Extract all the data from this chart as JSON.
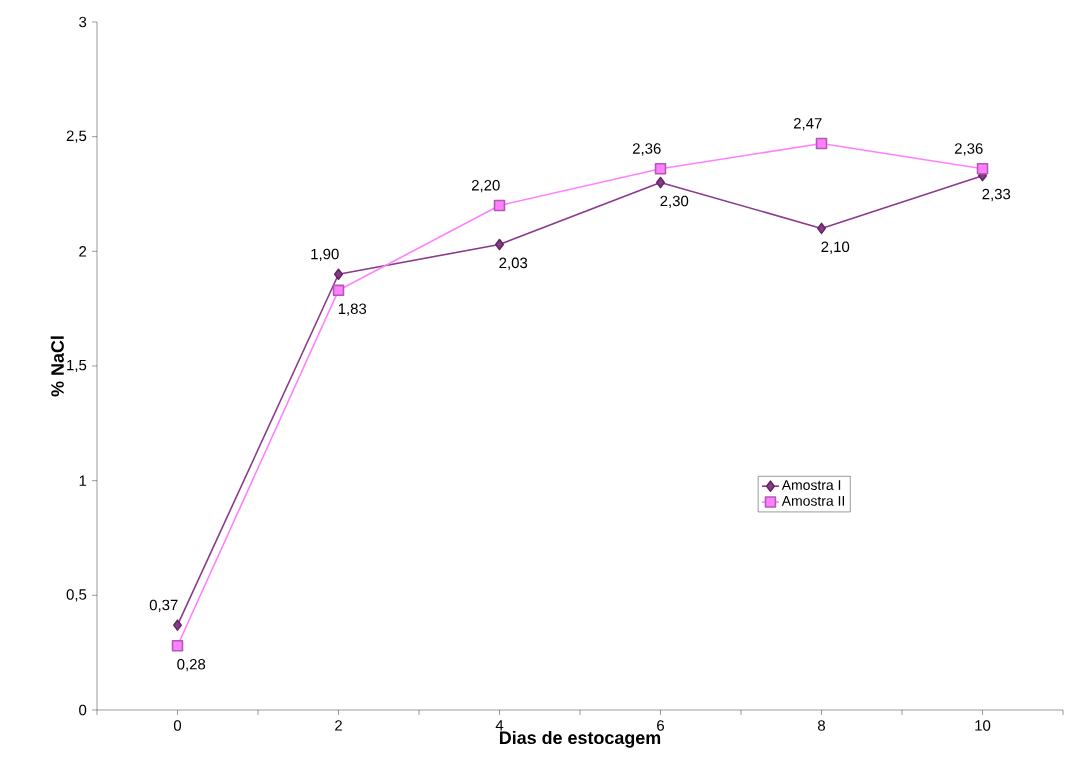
{
  "chart_data": {
    "type": "line",
    "xlabel": "Dias de estocagem",
    "ylabel": "% NaCl",
    "x": [
      0,
      2,
      4,
      6,
      8,
      10
    ],
    "xlim": [
      -1,
      11
    ],
    "xticks": [
      {
        "value": -1,
        "label": null
      },
      0,
      {
        "value": 1,
        "label": null
      },
      2,
      {
        "value": 3,
        "label": null
      },
      4,
      {
        "value": 5,
        "label": null
      },
      6,
      {
        "value": 7,
        "label": null
      },
      8,
      {
        "value": 9,
        "label": null
      },
      10,
      {
        "value": 11,
        "label": null
      }
    ],
    "ylim": [
      0,
      3
    ],
    "yticks": [
      0,
      {
        "value": 0.5,
        "label": "0,5"
      },
      1,
      {
        "value": 1.5,
        "label": "1,5"
      },
      2,
      {
        "value": 2.5,
        "label": "2,5"
      },
      3
    ],
    "legend": "right",
    "series": [
      {
        "name": "Amostra I",
        "color": "#8b3a8b",
        "marker": "diamond",
        "values": [
          0.37,
          1.9,
          2.03,
          2.3,
          2.1,
          2.33
        ],
        "value_labels": [
          "0,37",
          "1,90",
          "2,03",
          "2,30",
          "2,10",
          "2,33"
        ]
      },
      {
        "name": "Amostra II",
        "color": "#ff80ff",
        "marker": "square",
        "values": [
          0.28,
          1.83,
          2.2,
          2.36,
          2.47,
          2.36
        ],
        "value_labels": [
          "0,28",
          "1,83",
          "2,20",
          "2,36",
          "2,47",
          "2,36"
        ]
      }
    ]
  }
}
